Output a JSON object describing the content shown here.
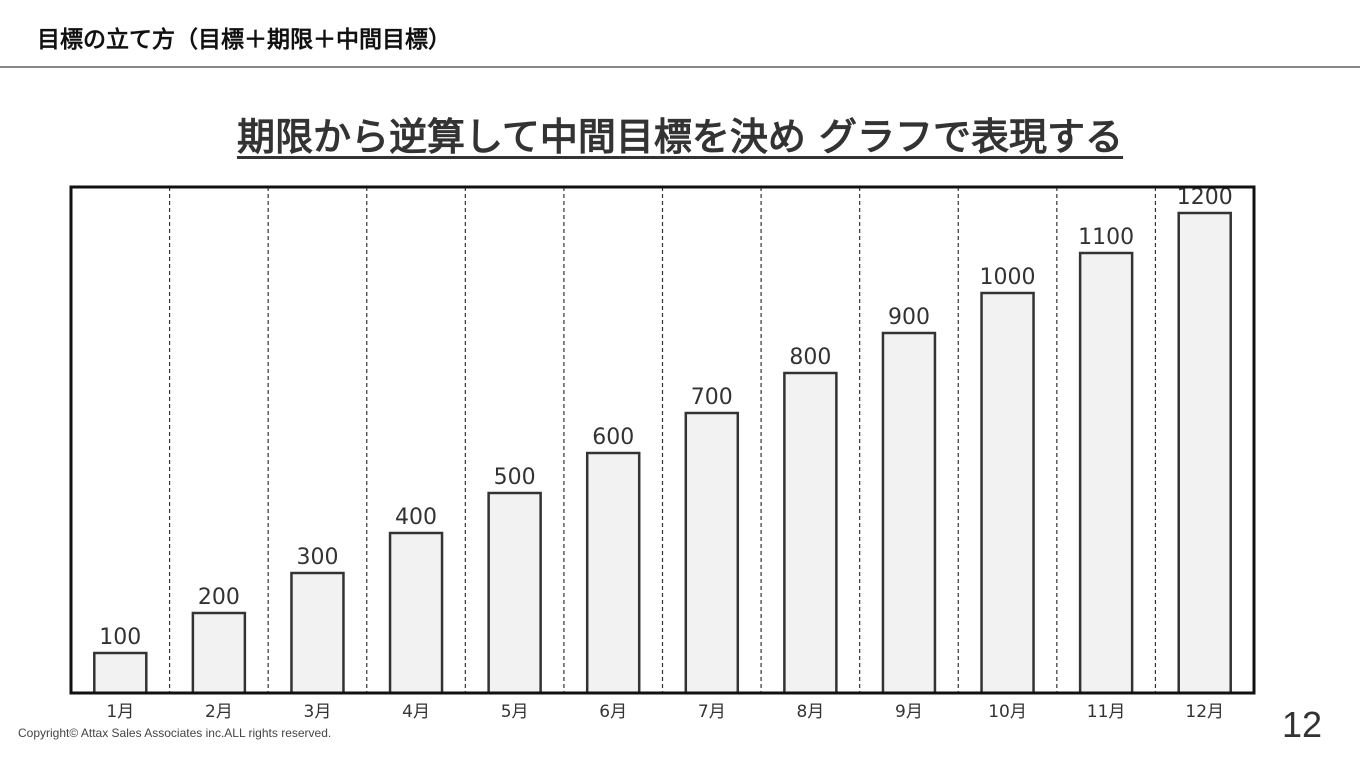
{
  "header": {
    "title": "目標の立て方（目標＋期限＋中間目標）"
  },
  "slide_title": "期限から逆算して中間目標を決め グラフで表現する",
  "footer": {
    "copyright": "Copyright© Attax Sales Associates inc.ALL rights reserved.",
    "page_number": "12"
  },
  "chart_data": {
    "type": "bar",
    "title": "",
    "xlabel": "",
    "ylabel": "",
    "categories": [
      "1月",
      "2月",
      "3月",
      "4月",
      "5月",
      "6月",
      "7月",
      "8月",
      "9月",
      "10月",
      "11月",
      "12月"
    ],
    "values": [
      100,
      200,
      300,
      400,
      500,
      600,
      700,
      800,
      900,
      1000,
      1100,
      1200
    ],
    "data_labels": true,
    "grid": "dashed vertical separators between categories",
    "bar_color": "#f2f2f2",
    "bar_edge_color": "#333333"
  }
}
